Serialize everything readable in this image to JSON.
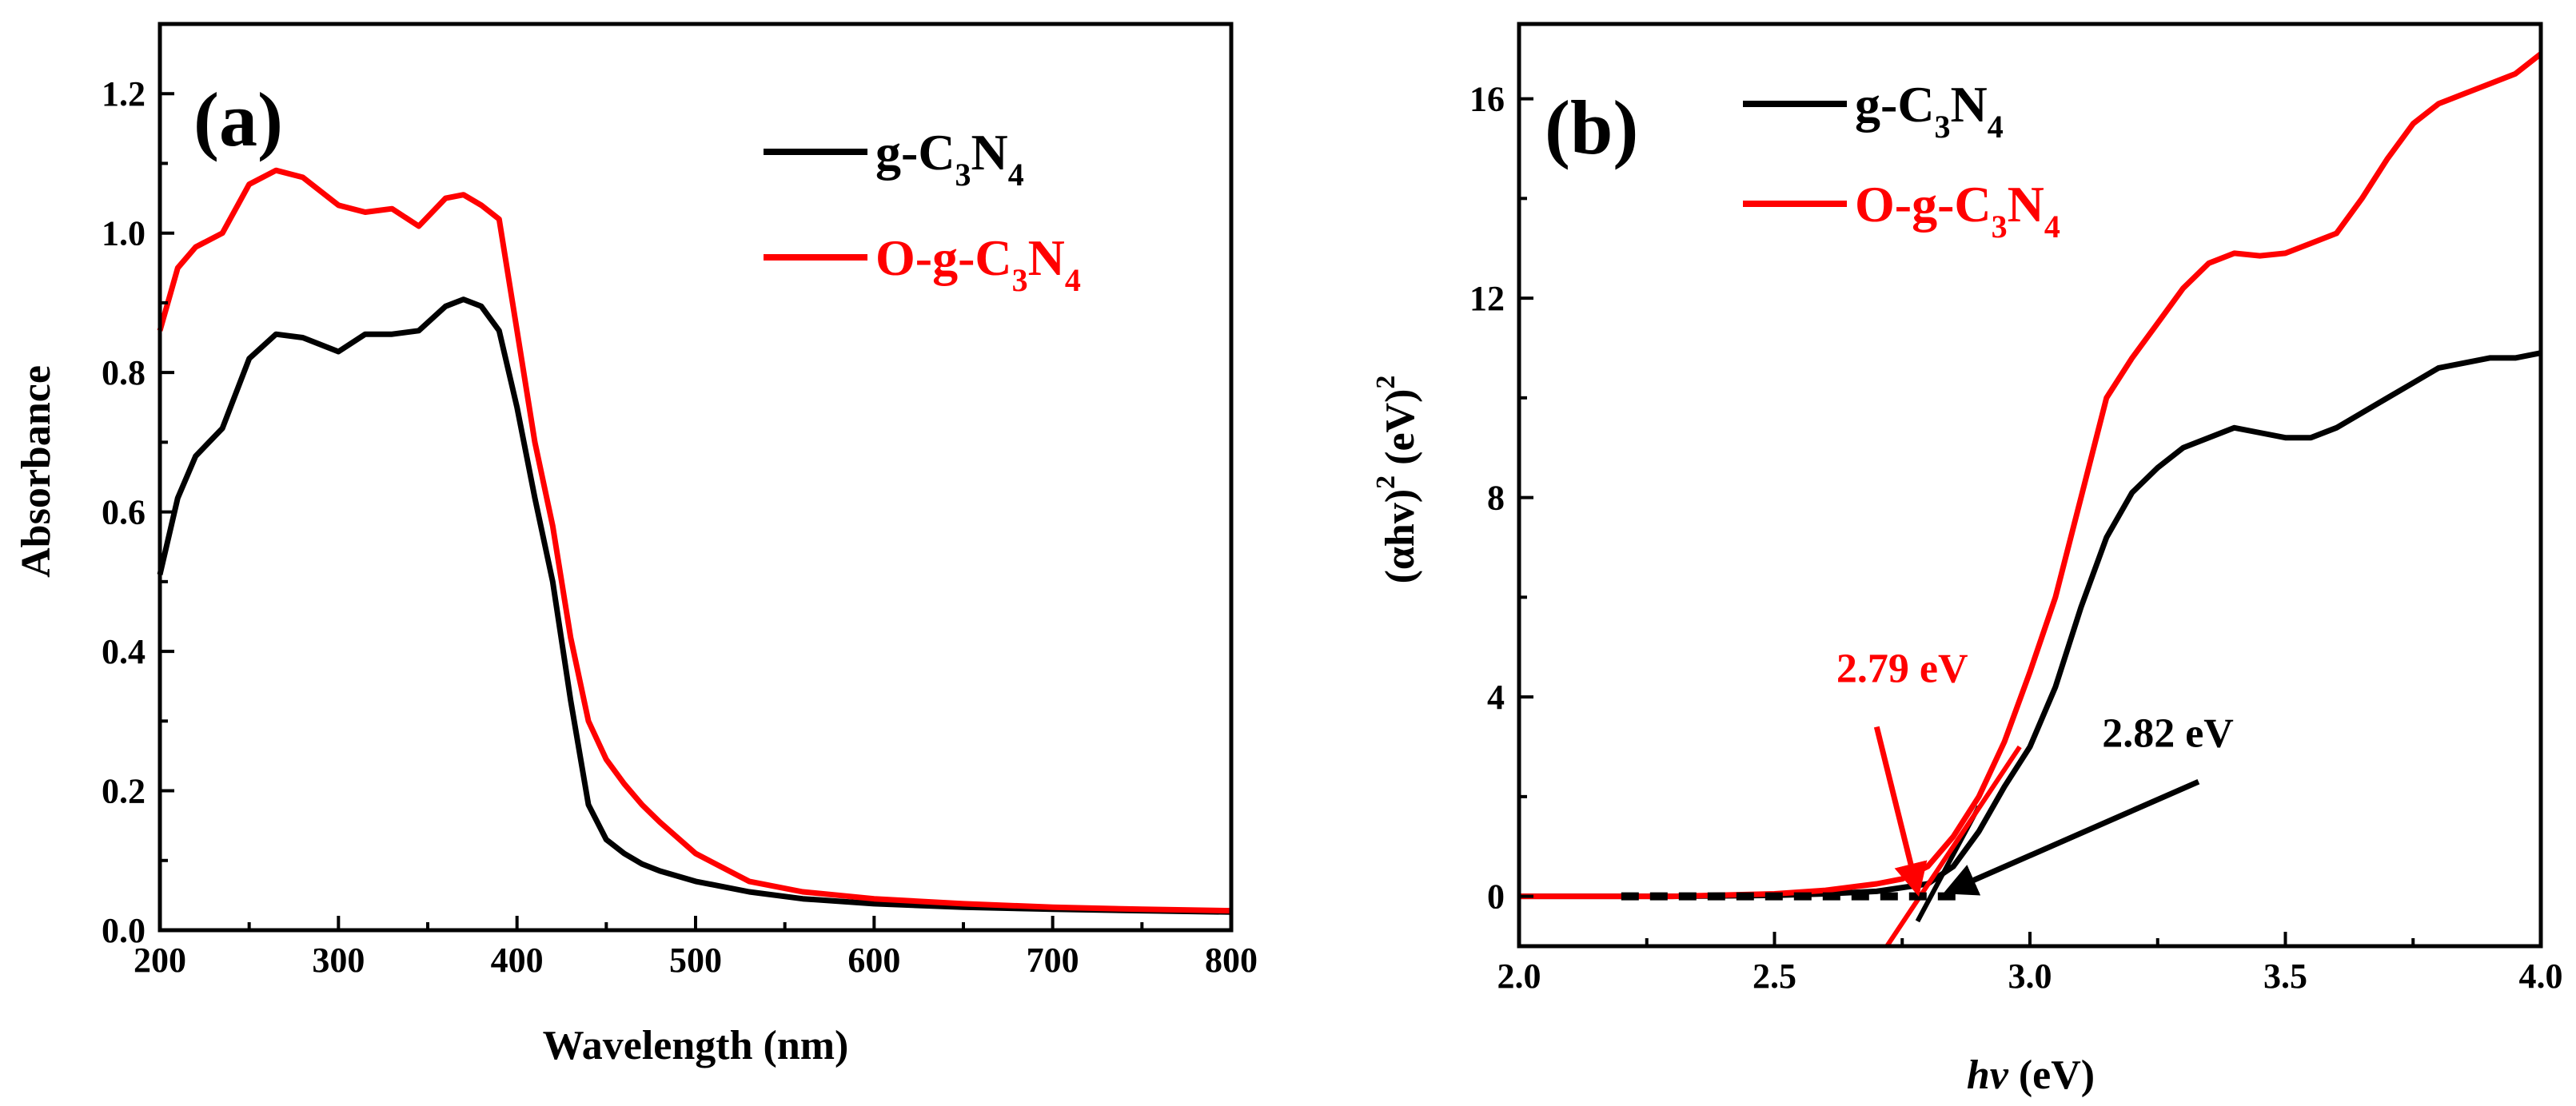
{
  "chart_data": [
    {
      "type": "line",
      "panel_label": "(a)",
      "xlabel": "Wavelength (nm)",
      "ylabel": "Absorbance",
      "xlim": [
        200,
        800
      ],
      "ylim": [
        0.0,
        1.3
      ],
      "xticks": [
        {
          "v": 200,
          "label": "200"
        },
        {
          "v": 300,
          "label": "300"
        },
        {
          "v": 400,
          "label": "400"
        },
        {
          "v": 500,
          "label": "500"
        },
        {
          "v": 600,
          "label": "600"
        },
        {
          "v": 700,
          "label": "700"
        },
        {
          "v": 800,
          "label": "800"
        }
      ],
      "yticks": [
        {
          "v": 0.0,
          "label": "0.0"
        },
        {
          "v": 0.2,
          "label": "0.2"
        },
        {
          "v": 0.4,
          "label": "0.4"
        },
        {
          "v": 0.6,
          "label": "0.6"
        },
        {
          "v": 0.8,
          "label": "0.8"
        },
        {
          "v": 1.0,
          "label": "1.0"
        },
        {
          "v": 1.2,
          "label": "1.2"
        }
      ],
      "legend_position": "top-right",
      "series": [
        {
          "name": "g-C3N4",
          "legend": {
            "prefix": "g-C",
            "sub1": "3",
            "mid": "N",
            "sub2": "4"
          },
          "color": "#000000",
          "x": [
            200,
            210,
            220,
            235,
            250,
            265,
            280,
            300,
            315,
            330,
            345,
            360,
            370,
            380,
            390,
            400,
            410,
            420,
            430,
            440,
            450,
            460,
            470,
            480,
            500,
            530,
            560,
            600,
            650,
            700,
            750,
            800
          ],
          "y": [
            0.51,
            0.62,
            0.68,
            0.72,
            0.82,
            0.855,
            0.85,
            0.83,
            0.855,
            0.855,
            0.86,
            0.895,
            0.905,
            0.895,
            0.86,
            0.75,
            0.62,
            0.5,
            0.33,
            0.18,
            0.13,
            0.11,
            0.095,
            0.085,
            0.07,
            0.055,
            0.045,
            0.038,
            0.033,
            0.03,
            0.028,
            0.026
          ]
        },
        {
          "name": "O-g-C3N4",
          "legend": {
            "prefix": "O-g-C",
            "sub1": "3",
            "mid": "N",
            "sub2": "4"
          },
          "color": "#ff0000",
          "x": [
            200,
            210,
            220,
            235,
            250,
            265,
            280,
            300,
            315,
            330,
            345,
            360,
            370,
            380,
            390,
            400,
            410,
            420,
            430,
            440,
            450,
            460,
            470,
            480,
            500,
            530,
            560,
            600,
            650,
            700,
            750,
            800
          ],
          "y": [
            0.86,
            0.95,
            0.98,
            1.0,
            1.07,
            1.09,
            1.08,
            1.04,
            1.03,
            1.035,
            1.01,
            1.05,
            1.055,
            1.04,
            1.02,
            0.86,
            0.7,
            0.58,
            0.42,
            0.3,
            0.245,
            0.21,
            0.18,
            0.155,
            0.11,
            0.07,
            0.055,
            0.045,
            0.038,
            0.033,
            0.03,
            0.028
          ]
        }
      ]
    },
    {
      "type": "line",
      "panel_label": "(b)",
      "xlabel": "hv (eV)",
      "xlabel_parts": {
        "italic": "hv",
        "rest": " (eV)"
      },
      "ylabel": "(αhv)2 (eV)2",
      "ylabel_parts": {
        "a": "(αhv)",
        "sup1": "2",
        "b": " (eV)",
        "sup2": "2"
      },
      "xlim": [
        2.0,
        4.0
      ],
      "ylim": [
        -1,
        17.5
      ],
      "xticks": [
        {
          "v": 2.0,
          "label": "2.0"
        },
        {
          "v": 2.5,
          "label": "2.5"
        },
        {
          "v": 3.0,
          "label": "3.0"
        },
        {
          "v": 3.5,
          "label": "3.5"
        },
        {
          "v": 4.0,
          "label": "4.0"
        }
      ],
      "yticks": [
        {
          "v": 0,
          "label": "0"
        },
        {
          "v": 4,
          "label": "4"
        },
        {
          "v": 8,
          "label": "8"
        },
        {
          "v": 12,
          "label": "12"
        },
        {
          "v": 16,
          "label": "16"
        }
      ],
      "legend_position": "top-left",
      "series": [
        {
          "name": "g-C3N4",
          "legend": {
            "prefix": "g-C",
            "sub1": "3",
            "mid": "N",
            "sub2": "4"
          },
          "color": "#000000",
          "x": [
            2.0,
            2.3,
            2.5,
            2.6,
            2.7,
            2.8,
            2.85,
            2.9,
            2.95,
            3.0,
            3.05,
            3.1,
            3.15,
            3.2,
            3.25,
            3.3,
            3.4,
            3.45,
            3.5,
            3.55,
            3.6,
            3.7,
            3.75,
            3.8,
            3.85,
            3.9,
            3.95,
            4.0
          ],
          "y": [
            0,
            0,
            0.02,
            0.05,
            0.1,
            0.25,
            0.6,
            1.3,
            2.2,
            3.0,
            4.2,
            5.8,
            7.2,
            8.1,
            8.6,
            9.0,
            9.4,
            9.3,
            9.2,
            9.2,
            9.4,
            10.0,
            10.3,
            10.6,
            10.7,
            10.8,
            10.8,
            10.9
          ]
        },
        {
          "name": "O-g-C3N4",
          "legend": {
            "prefix": "O-g-C",
            "sub1": "3",
            "mid": "N",
            "sub2": "4"
          },
          "color": "#ff0000",
          "x": [
            2.0,
            2.3,
            2.5,
            2.6,
            2.7,
            2.75,
            2.8,
            2.85,
            2.9,
            2.95,
            3.0,
            3.05,
            3.1,
            3.15,
            3.2,
            3.25,
            3.3,
            3.35,
            3.4,
            3.45,
            3.5,
            3.55,
            3.6,
            3.65,
            3.7,
            3.75,
            3.8,
            3.85,
            3.9,
            3.95,
            4.0
          ],
          "y": [
            0,
            0,
            0.05,
            0.12,
            0.25,
            0.35,
            0.6,
            1.2,
            2.0,
            3.1,
            4.5,
            6.0,
            8.0,
            10.0,
            10.8,
            11.5,
            12.2,
            12.7,
            12.9,
            12.85,
            12.9,
            13.1,
            13.3,
            14.0,
            14.8,
            15.5,
            15.9,
            16.1,
            16.3,
            16.5,
            16.9
          ]
        }
      ],
      "tangent_lines": [
        {
          "name": "g-C3N4-tangent",
          "color": "#000000",
          "dash": false,
          "x": [
            2.78,
            2.9
          ],
          "y": [
            -0.5,
            1.8
          ]
        },
        {
          "name": "O-g-C3N4-tangent",
          "color": "#ff0000",
          "dash": false,
          "x": [
            2.72,
            2.98
          ],
          "y": [
            -1.0,
            3.0
          ]
        },
        {
          "name": "baseline-g-C3N4",
          "color": "#000000",
          "dash": true,
          "x": [
            2.2,
            2.86
          ],
          "y": [
            0.0,
            0.0
          ]
        }
      ],
      "annotations": [
        {
          "text": "2.79 eV",
          "color": "#ff0000",
          "text_x": 2.75,
          "text_y": 4.3,
          "arrow_from": [
            2.7,
            3.4
          ],
          "arrow_to": [
            2.78,
            0.1
          ]
        },
        {
          "text": "2.82 eV",
          "color": "#000000",
          "text_x": 3.27,
          "text_y": 3.0,
          "arrow_from": [
            3.33,
            2.3
          ],
          "arrow_to": [
            2.84,
            0.1
          ]
        }
      ]
    }
  ]
}
